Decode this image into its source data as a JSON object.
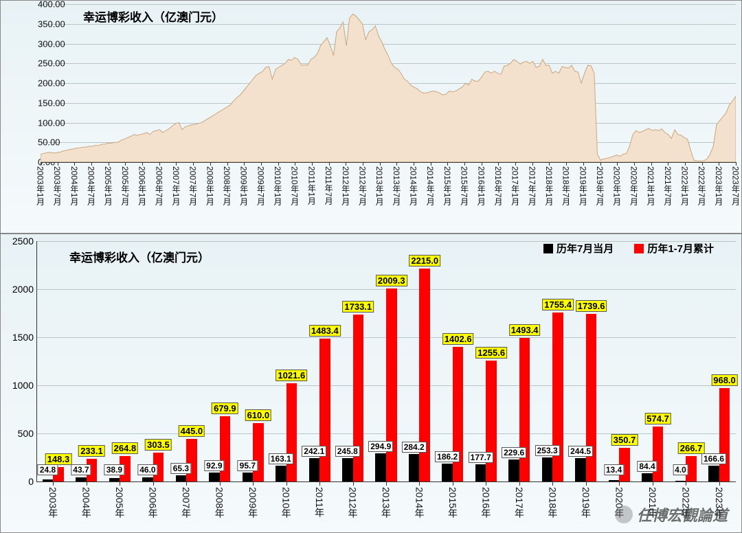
{
  "top_chart": {
    "type": "area",
    "title": "幸运博彩收入（亿澳门元）",
    "title_fontsize": 17,
    "background_gradient": [
      "#e8f2f5",
      "#f5fafc"
    ],
    "grid_color": "#b8c4c8",
    "area_fill": "#f3e0cd",
    "area_stroke": "#c9a77e",
    "y_axis": {
      "min": 0,
      "max": 400,
      "step": 50,
      "labels": [
        "0.00",
        "50.00",
        "100.00",
        "150.00",
        "200.00",
        "250.00",
        "300.00",
        "350.00",
        "400.00"
      ],
      "fontsize": 13
    },
    "x_axis": {
      "labels": [
        "2003年1月",
        "2003年7月",
        "2004年1月",
        "2004年7月",
        "2005年1月",
        "2005年7月",
        "2006年1月",
        "2006年7月",
        "2007年1月",
        "2007年7月",
        "2008年1月",
        "2008年7月",
        "2009年1月",
        "2009年7月",
        "2010年1月",
        "2010年7月",
        "2011年1月",
        "2011年7月",
        "2012年1月",
        "2012年7月",
        "2013年1月",
        "2013年7月",
        "2014年1月",
        "2014年7月",
        "2015年1月",
        "2015年7月",
        "2016年1月",
        "2016年7月",
        "2017年1月",
        "2017年7月",
        "2018年1月",
        "2018年7月",
        "2019年1月",
        "2019年7月",
        "2020年1月",
        "2020年7月",
        "2021年1月",
        "2021年7月",
        "2022年1月",
        "2022年7月",
        "2023年1月",
        "2023年7月"
      ],
      "fontsize": 12
    },
    "series": [
      20,
      22,
      24,
      25,
      23,
      24,
      25,
      28,
      30,
      32,
      33,
      35,
      36,
      38,
      38,
      40,
      40,
      42,
      42,
      45,
      46,
      48,
      48,
      50,
      50,
      55,
      58,
      62,
      65,
      70,
      68,
      70,
      72,
      75,
      70,
      78,
      80,
      82,
      75,
      80,
      85,
      92,
      98,
      100,
      82,
      90,
      92,
      95,
      95,
      98,
      100,
      105,
      110,
      115,
      120,
      125,
      130,
      135,
      140,
      145,
      155,
      163,
      170,
      180,
      190,
      200,
      210,
      220,
      225,
      230,
      240,
      242,
      210,
      235,
      240,
      245,
      250,
      260,
      258,
      265,
      260,
      245,
      246,
      246,
      260,
      265,
      275,
      295,
      305,
      315,
      295,
      270,
      330,
      340,
      355,
      295,
      365,
      375,
      370,
      360,
      350,
      310,
      330,
      335,
      345,
      320,
      305,
      285,
      270,
      250,
      240,
      235,
      225,
      210,
      205,
      195,
      190,
      186,
      178,
      175,
      175,
      178,
      180,
      178,
      175,
      170,
      172,
      180,
      178,
      180,
      185,
      190,
      200,
      195,
      210,
      205,
      205,
      215,
      228,
      230,
      225,
      230,
      225,
      222,
      243,
      245,
      250,
      260,
      255,
      248,
      253,
      255,
      250,
      255,
      240,
      243,
      260,
      245,
      245,
      225,
      230,
      225,
      242,
      240,
      238,
      245,
      230,
      228,
      200,
      225,
      245,
      244,
      225,
      20,
      5,
      8,
      10,
      12,
      15,
      18,
      15,
      20,
      22,
      40,
      70,
      80,
      75,
      78,
      82,
      85,
      80,
      82,
      80,
      84,
      75,
      70,
      60,
      82,
      70,
      68,
      62,
      58,
      30,
      5,
      3,
      3,
      3,
      8,
      20,
      40,
      95,
      105,
      115,
      125,
      145,
      155,
      167
    ]
  },
  "bottom_chart": {
    "type": "bar-grouped",
    "title": "幸运博彩收入（亿澳门元）",
    "title_fontsize": 17,
    "background_gradient": [
      "#e8f2f5",
      "#f5fafc"
    ],
    "grid_color": "#b8c4c8",
    "axis_color": "#333",
    "y_axis": {
      "min": 0,
      "max": 2500,
      "step": 500,
      "labels": [
        "0",
        "500",
        "1000",
        "1500",
        "2000",
        "2500"
      ],
      "fontsize": 14
    },
    "x_axis": {
      "labels": [
        "2003年",
        "2004年",
        "2005年",
        "2006年",
        "2007年",
        "2008年",
        "2009年",
        "2010年",
        "2011年",
        "2012年",
        "2013年",
        "2014年",
        "2015年",
        "2016年",
        "2017年",
        "2018年",
        "2019年",
        "2020年",
        "2021年",
        "2022年",
        "2023年"
      ],
      "fontsize": 14
    },
    "legend": [
      {
        "label": "历年7月当月",
        "color": "#000000"
      },
      {
        "label": "历年1-7月累计",
        "color": "#ff0000"
      }
    ],
    "legend_fontsize": 15,
    "series_black": {
      "color": "#000000",
      "label_bg": "#ffffff",
      "label_border": "#555",
      "label_fontsize": 12,
      "values": [
        24.8,
        43.7,
        38.9,
        46.0,
        65.3,
        92.9,
        95.7,
        163.1,
        242.1,
        245.8,
        294.9,
        284.2,
        186.2,
        177.7,
        229.6,
        253.3,
        244.5,
        13.4,
        84.4,
        4.0,
        166.6
      ]
    },
    "series_red": {
      "color": "#ff0000",
      "label_bg": "#ffff00",
      "label_border": "#555",
      "label_fontsize": 13,
      "values": [
        148.3,
        233.1,
        264.8,
        303.5,
        445.0,
        679.9,
        610.0,
        1021.6,
        1483.4,
        1733.1,
        2009.3,
        2215.0,
        1402.6,
        1255.6,
        1493.4,
        1755.4,
        1739.6,
        350.7,
        574.7,
        266.7,
        968.0
      ]
    },
    "bar_width_ratio": 0.32
  },
  "watermark": "任博宏觀論道"
}
